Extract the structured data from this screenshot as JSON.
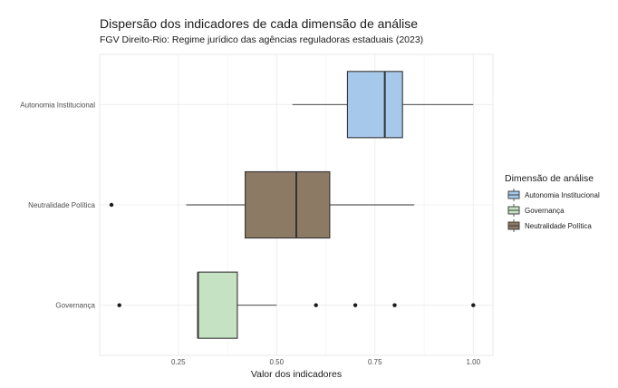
{
  "chart_data": {
    "type": "boxplot",
    "orientation": "horizontal",
    "title": "Dispersão dos indicadores de cada dimensão de análise",
    "subtitle": "FGV Direito-Rio: Regime jurídico das agências reguladoras estaduais (2023)",
    "xlabel": "Valor dos indicadores",
    "ylabel": "",
    "xlim": [
      0.05,
      1.05
    ],
    "x_ticks": [
      0.25,
      0.5,
      0.75,
      1.0
    ],
    "x_tick_labels": [
      "0.25",
      "0.50",
      "0.75",
      "1.00"
    ],
    "grid": true,
    "legend": {
      "title": "Dimensão de análise",
      "position": "right",
      "entries": [
        "Autonomia Institucional",
        "Governança",
        "Neutralidade Política"
      ]
    },
    "series": [
      {
        "name": "Autonomia Institucional",
        "color": "#a6c8ea",
        "whisker_low": 0.54,
        "q1": 0.68,
        "median": 0.775,
        "q3": 0.82,
        "whisker_high": 1.0,
        "outliers": []
      },
      {
        "name": "Neutralidade Política",
        "color": "#8c7a65",
        "whisker_low": 0.27,
        "q1": 0.42,
        "median": 0.55,
        "q3": 0.635,
        "whisker_high": 0.85,
        "outliers": [
          0.08
        ]
      },
      {
        "name": "Governança",
        "color": "#c5e3c3",
        "whisker_low": 0.3,
        "q1": 0.3,
        "median": 0.3,
        "q3": 0.4,
        "whisker_high": 0.5,
        "outliers": [
          0.1,
          0.6,
          0.7,
          0.8,
          1.0
        ]
      }
    ],
    "legend_colors": {
      "Autonomia Institucional": "#a6c8ea",
      "Governança": "#c5e3c3",
      "Neutralidade Política": "#8c7a65"
    }
  }
}
